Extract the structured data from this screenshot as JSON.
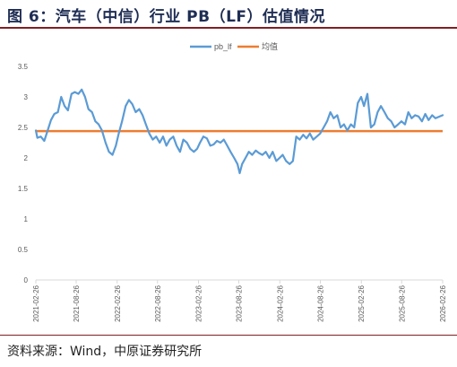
{
  "figure_title": "图 6：汽车（中信）行业 PB（LF）估值情况",
  "source_note": "资料来源：Wind，中原证券研究所",
  "chart_data": {
    "type": "line",
    "title": "",
    "xlabel": "",
    "ylabel": "",
    "ylim": [
      0,
      3.5
    ],
    "y_ticks": [
      "0",
      "0.5",
      "1",
      "1.5",
      "2",
      "2.5",
      "3",
      "3.5"
    ],
    "x_range": [
      "2021-02-26",
      "2026-02-26"
    ],
    "x_ticks": [
      "2021-02-26",
      "2021-08-26",
      "2022-02-26",
      "2022-08-26",
      "2023-02-26",
      "2023-08-26",
      "2024-02-26",
      "2024-08-26",
      "2025-02-26",
      "2025-08-26",
      "2026-02-26"
    ],
    "grid": false,
    "legend_position": "top-center",
    "series": [
      {
        "name": "pb_lf",
        "color": "#5b9bd5",
        "points": [
          [
            "2021-02-26",
            2.45
          ],
          [
            "2021-03-05",
            2.33
          ],
          [
            "2021-03-20",
            2.35
          ],
          [
            "2021-04-05",
            2.28
          ],
          [
            "2021-04-20",
            2.45
          ],
          [
            "2021-05-05",
            2.62
          ],
          [
            "2021-05-20",
            2.72
          ],
          [
            "2021-06-05",
            2.75
          ],
          [
            "2021-06-20",
            3.0
          ],
          [
            "2021-07-05",
            2.85
          ],
          [
            "2021-07-20",
            2.78
          ],
          [
            "2021-08-05",
            3.05
          ],
          [
            "2021-08-20",
            3.08
          ],
          [
            "2021-09-05",
            3.05
          ],
          [
            "2021-09-20",
            3.12
          ],
          [
            "2021-10-05",
            3.0
          ],
          [
            "2021-10-20",
            2.8
          ],
          [
            "2021-11-05",
            2.75
          ],
          [
            "2021-11-20",
            2.6
          ],
          [
            "2021-12-05",
            2.55
          ],
          [
            "2021-12-20",
            2.45
          ],
          [
            "2022-01-05",
            2.25
          ],
          [
            "2022-01-20",
            2.1
          ],
          [
            "2022-02-05",
            2.05
          ],
          [
            "2022-02-20",
            2.2
          ],
          [
            "2022-03-05",
            2.4
          ],
          [
            "2022-03-20",
            2.6
          ],
          [
            "2022-04-05",
            2.85
          ],
          [
            "2022-04-20",
            2.95
          ],
          [
            "2022-05-05",
            2.88
          ],
          [
            "2022-05-20",
            2.75
          ],
          [
            "2022-06-05",
            2.8
          ],
          [
            "2022-06-20",
            2.7
          ],
          [
            "2022-07-05",
            2.55
          ],
          [
            "2022-07-20",
            2.4
          ],
          [
            "2022-08-05",
            2.3
          ],
          [
            "2022-08-20",
            2.35
          ],
          [
            "2022-09-05",
            2.25
          ],
          [
            "2022-09-20",
            2.35
          ],
          [
            "2022-10-05",
            2.2
          ],
          [
            "2022-10-20",
            2.3
          ],
          [
            "2022-11-05",
            2.35
          ],
          [
            "2022-11-20",
            2.2
          ],
          [
            "2022-12-05",
            2.1
          ],
          [
            "2022-12-20",
            2.3
          ],
          [
            "2023-01-05",
            2.25
          ],
          [
            "2023-01-20",
            2.15
          ],
          [
            "2023-02-05",
            2.1
          ],
          [
            "2023-02-20",
            2.15
          ],
          [
            "2023-03-05",
            2.25
          ],
          [
            "2023-03-20",
            2.35
          ],
          [
            "2023-04-05",
            2.32
          ],
          [
            "2023-04-20",
            2.2
          ],
          [
            "2023-05-05",
            2.22
          ],
          [
            "2023-05-20",
            2.28
          ],
          [
            "2023-06-05",
            2.25
          ],
          [
            "2023-06-20",
            2.3
          ],
          [
            "2023-07-05",
            2.2
          ],
          [
            "2023-07-20",
            2.1
          ],
          [
            "2023-08-05",
            2.0
          ],
          [
            "2023-08-20",
            1.9
          ],
          [
            "2023-08-30",
            1.75
          ],
          [
            "2023-09-10",
            1.9
          ],
          [
            "2023-09-25",
            2.0
          ],
          [
            "2023-10-10",
            2.1
          ],
          [
            "2023-10-25",
            2.05
          ],
          [
            "2023-11-10",
            2.12
          ],
          [
            "2023-11-25",
            2.08
          ],
          [
            "2023-12-10",
            2.05
          ],
          [
            "2023-12-25",
            2.1
          ],
          [
            "2024-01-10",
            2.0
          ],
          [
            "2024-01-25",
            2.1
          ],
          [
            "2024-02-10",
            1.95
          ],
          [
            "2024-02-25",
            2.0
          ],
          [
            "2024-03-10",
            2.05
          ],
          [
            "2024-03-25",
            1.95
          ],
          [
            "2024-04-10",
            1.9
          ],
          [
            "2024-04-25",
            1.95
          ],
          [
            "2024-05-10",
            2.35
          ],
          [
            "2024-05-25",
            2.3
          ],
          [
            "2024-06-10",
            2.38
          ],
          [
            "2024-06-25",
            2.32
          ],
          [
            "2024-07-10",
            2.4
          ],
          [
            "2024-07-25",
            2.3
          ],
          [
            "2024-08-10",
            2.35
          ],
          [
            "2024-08-25",
            2.4
          ],
          [
            "2024-09-10",
            2.5
          ],
          [
            "2024-09-25",
            2.6
          ],
          [
            "2024-10-10",
            2.75
          ],
          [
            "2024-10-25",
            2.65
          ],
          [
            "2024-11-10",
            2.7
          ],
          [
            "2024-11-25",
            2.5
          ],
          [
            "2024-12-10",
            2.55
          ],
          [
            "2024-12-25",
            2.45
          ],
          [
            "2025-01-10",
            2.55
          ],
          [
            "2025-01-25",
            2.5
          ],
          [
            "2025-02-10",
            2.9
          ],
          [
            "2025-02-25",
            3.0
          ],
          [
            "2025-03-10",
            2.85
          ],
          [
            "2025-03-25",
            3.05
          ],
          [
            "2025-04-10",
            2.5
          ],
          [
            "2025-04-25",
            2.55
          ],
          [
            "2025-05-10",
            2.75
          ],
          [
            "2025-05-25",
            2.85
          ],
          [
            "2025-06-10",
            2.75
          ],
          [
            "2025-06-25",
            2.65
          ],
          [
            "2025-07-10",
            2.6
          ],
          [
            "2025-07-25",
            2.5
          ],
          [
            "2025-08-10",
            2.55
          ],
          [
            "2025-08-25",
            2.6
          ],
          [
            "2025-09-10",
            2.55
          ],
          [
            "2025-09-25",
            2.75
          ],
          [
            "2025-10-10",
            2.65
          ],
          [
            "2025-10-25",
            2.7
          ],
          [
            "2025-11-10",
            2.68
          ],
          [
            "2025-11-25",
            2.6
          ],
          [
            "2025-12-10",
            2.72
          ],
          [
            "2025-12-25",
            2.62
          ],
          [
            "2026-01-10",
            2.7
          ],
          [
            "2026-01-25",
            2.65
          ],
          [
            "2026-02-26",
            2.7
          ]
        ]
      },
      {
        "name": "均值",
        "color": "#ed7d31",
        "points": [
          [
            "2021-02-26",
            2.44
          ],
          [
            "2026-02-26",
            2.44
          ]
        ]
      }
    ]
  }
}
